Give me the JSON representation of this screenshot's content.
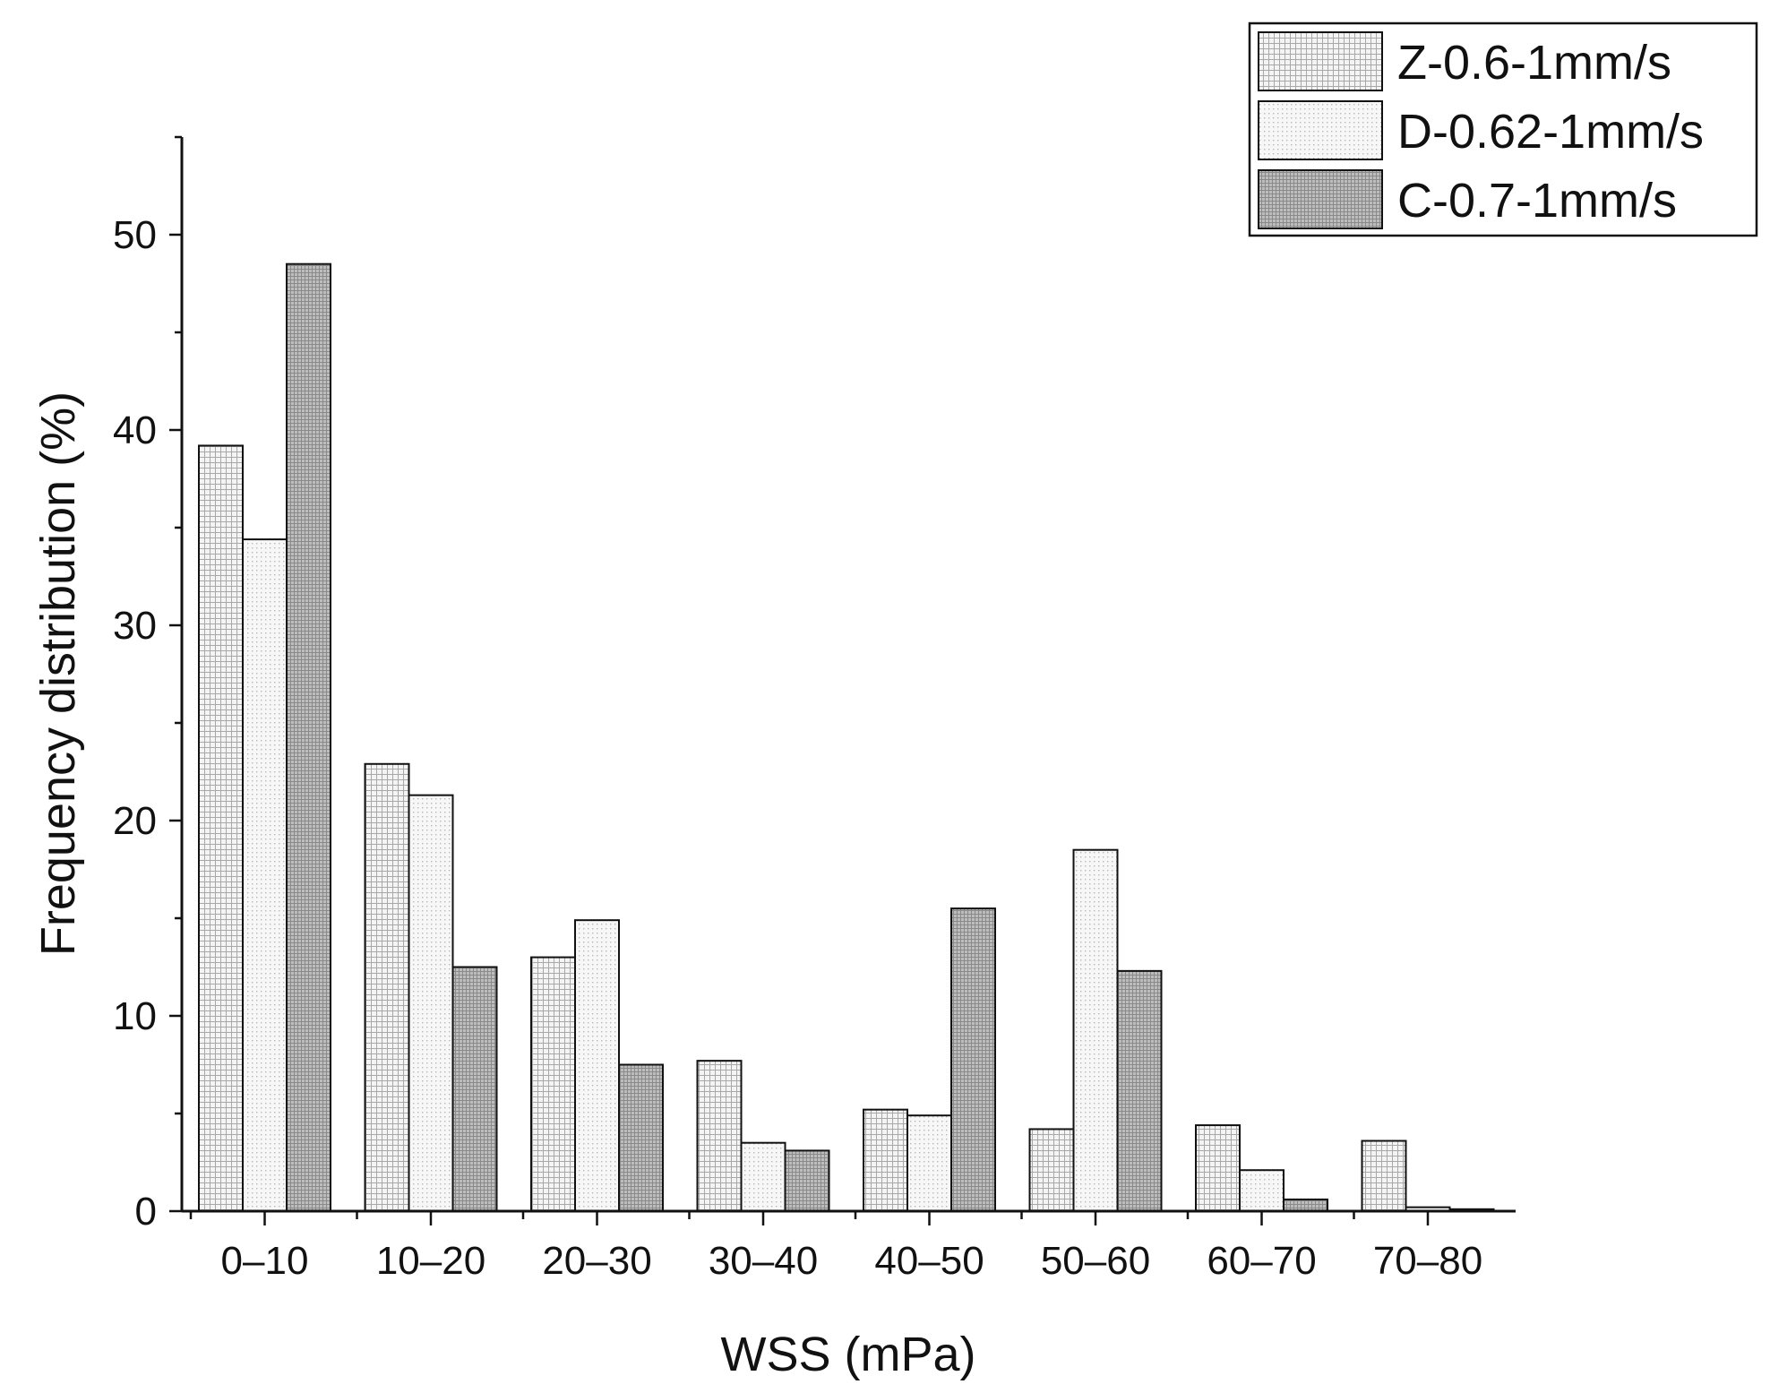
{
  "chart_data": {
    "type": "bar",
    "xlabel": "WSS (mPa)",
    "ylabel": "Frequency distribution (%)",
    "ylim": [
      0,
      55
    ],
    "yticks": [
      0,
      10,
      20,
      30,
      40,
      50
    ],
    "grid": false,
    "legend_position": "top-right",
    "categories": [
      "0–10",
      "10–20",
      "20–30",
      "30–40",
      "40–50",
      "50–60",
      "60–70",
      "70–80"
    ],
    "series": [
      {
        "name": "Z-0.6-1mm/s",
        "pattern": "grid",
        "color": "#e8e8e8",
        "values": [
          39.2,
          22.9,
          13.0,
          7.7,
          5.2,
          4.2,
          4.4,
          3.6
        ]
      },
      {
        "name": "D-0.62-1mm/s",
        "pattern": "dots",
        "color": "#f0f0f0",
        "values": [
          34.4,
          21.3,
          14.9,
          3.5,
          4.9,
          18.5,
          2.1,
          0.2
        ]
      },
      {
        "name": "C-0.7-1mm/s",
        "pattern": "dense",
        "color": "#a8a8a8",
        "values": [
          48.5,
          12.5,
          7.5,
          3.1,
          15.5,
          12.3,
          0.6,
          0.1
        ]
      }
    ]
  }
}
